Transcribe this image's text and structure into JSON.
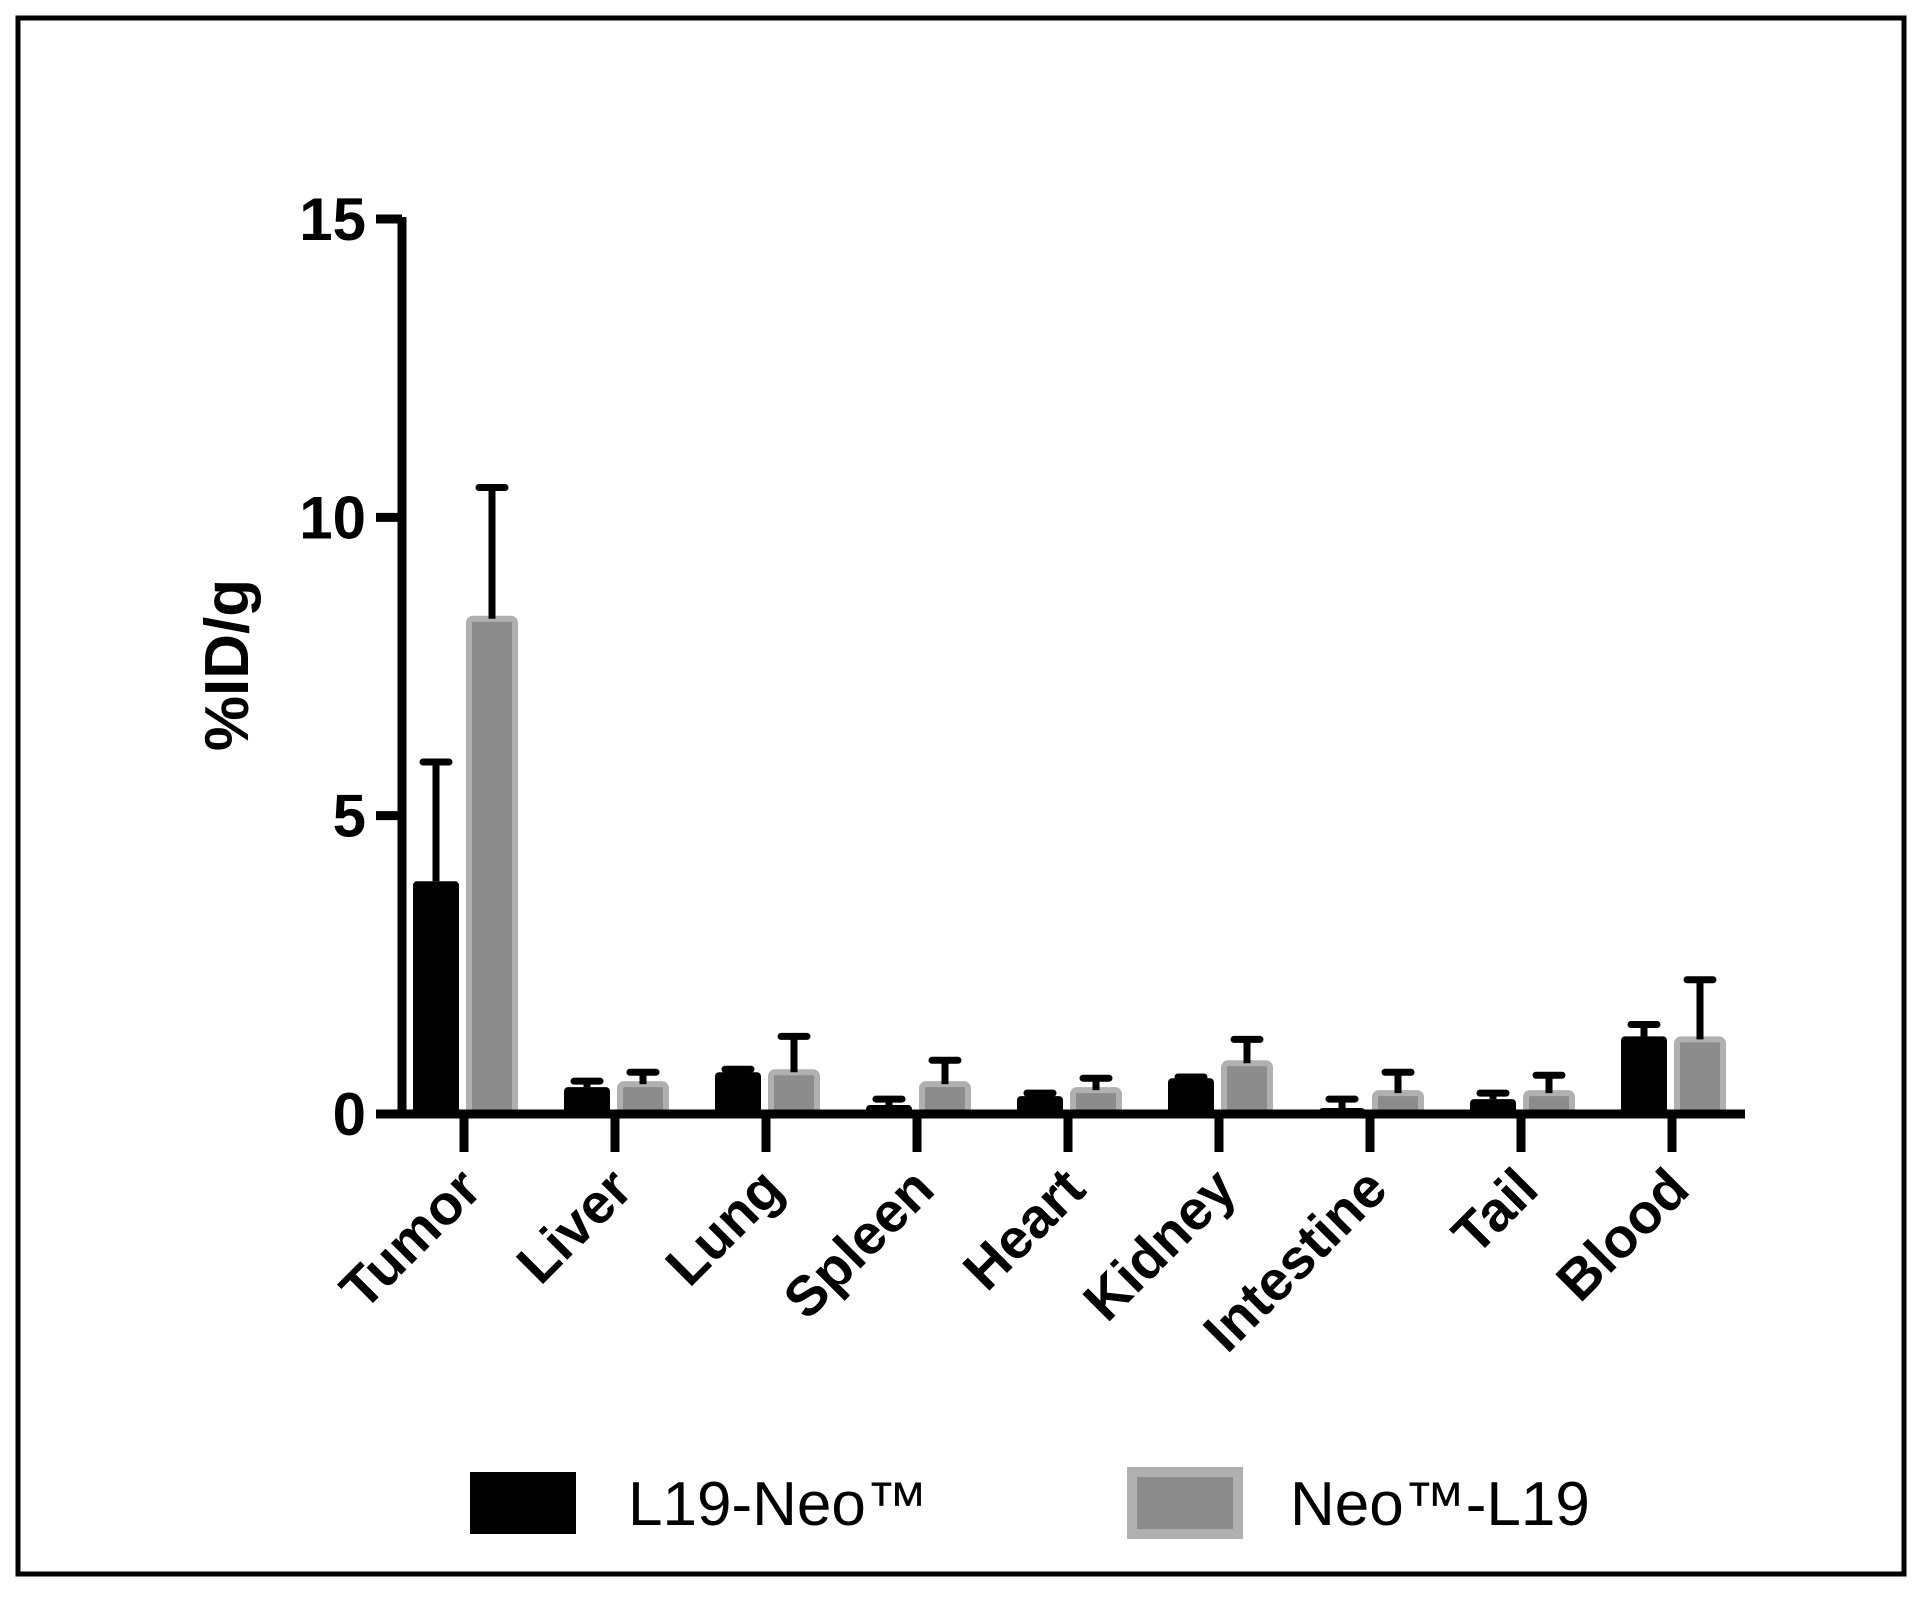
{
  "chart_data": {
    "type": "bar",
    "title": "",
    "xlabel": "",
    "ylabel": "%ID/g",
    "ylim": [
      0,
      15
    ],
    "yticks": [
      "0",
      "5",
      "10",
      "15"
    ],
    "grid": false,
    "legend_position": "bottom",
    "categories": [
      "Tumor",
      "Liver",
      "Lung",
      "Spleen",
      "Heart",
      "Kidney",
      "Intestine",
      "Tail",
      "Blood"
    ],
    "series": [
      {
        "name": "L19-Neo™",
        "color": "#000000",
        "values": [
          3.9,
          0.45,
          0.7,
          0.15,
          0.3,
          0.6,
          0.1,
          0.25,
          1.3
        ],
        "errors": [
          2.0,
          0.1,
          0.05,
          0.1,
          0.05,
          0.02,
          0.15,
          0.1,
          0.2
        ]
      },
      {
        "name": "Neo™-L19",
        "color": "#8c8c8c",
        "edge_color": "#b0b0b0",
        "values": [
          8.3,
          0.5,
          0.7,
          0.5,
          0.4,
          0.85,
          0.35,
          0.35,
          1.25
        ],
        "errors": [
          2.2,
          0.2,
          0.6,
          0.4,
          0.2,
          0.4,
          0.35,
          0.3,
          1.0
        ]
      }
    ]
  }
}
